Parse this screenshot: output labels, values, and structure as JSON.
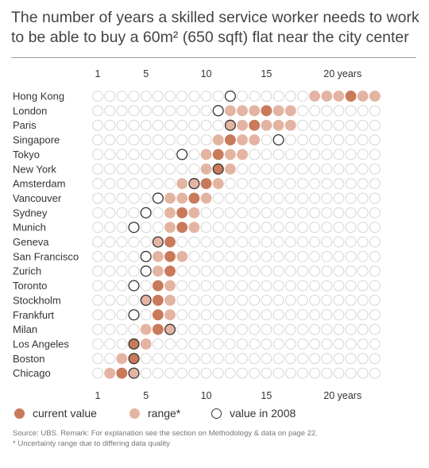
{
  "title": "The number of years a skilled service worker needs to work to be able to buy a 60m² (650 sqft) flat near the city center",
  "legend": {
    "current": "current value",
    "range": "range*",
    "y2008": "value in 2008"
  },
  "source_line1": "Source: UBS. Remark: For explanation see the section on Methodology & data on page 22.",
  "source_line2": "* Uncertainty range due to differing data quality",
  "colors": {
    "current": "#c97a5b",
    "range": "#e4b4a3",
    "empty": "#d9d9d9",
    "outline": "#333333"
  },
  "chart_data": {
    "type": "dot-range",
    "xlabel": "",
    "ylabel": "",
    "x_ticks": [
      {
        "value": 1,
        "label": "1"
      },
      {
        "value": 5,
        "label": "5"
      },
      {
        "value": 10,
        "label": "10"
      },
      {
        "value": 15,
        "label": "15"
      },
      {
        "value": 20,
        "label": "20 years"
      }
    ],
    "bottom_ticks": [
      {
        "value": 1,
        "label": "1"
      },
      {
        "value": 5,
        "label": "5"
      },
      {
        "value": 10,
        "label": "10"
      },
      {
        "value": 15,
        "label": "15"
      },
      {
        "value": 20,
        "label": "20 years"
      }
    ],
    "xlim": [
      1,
      24
    ],
    "cities": [
      {
        "name": "Hong Kong",
        "current": 22,
        "range": [
          19,
          24
        ],
        "y2008": 12
      },
      {
        "name": "London",
        "current": 15,
        "range": [
          12,
          17
        ],
        "y2008": 11
      },
      {
        "name": "Paris",
        "current": 14,
        "range": [
          12,
          17
        ],
        "y2008": 12
      },
      {
        "name": "Singapore",
        "current": 12,
        "range": [
          11,
          14
        ],
        "y2008": 16
      },
      {
        "name": "Tokyo",
        "current": 11,
        "range": [
          10,
          13
        ],
        "y2008": 8
      },
      {
        "name": "New York",
        "current": 11,
        "range": [
          10,
          12
        ],
        "y2008": 11
      },
      {
        "name": "Amsterdam",
        "current": 10,
        "range": [
          8,
          11
        ],
        "y2008": 9
      },
      {
        "name": "Vancouver",
        "current": 9,
        "range": [
          7,
          10
        ],
        "y2008": 6
      },
      {
        "name": "Sydney",
        "current": 8,
        "range": [
          7,
          9
        ],
        "y2008": 5
      },
      {
        "name": "Munich",
        "current": 8,
        "range": [
          7,
          9
        ],
        "y2008": 4
      },
      {
        "name": "Geneva",
        "current": 7,
        "range": [
          6,
          7
        ],
        "y2008": 6
      },
      {
        "name": "San Francisco",
        "current": 7,
        "range": [
          6,
          8
        ],
        "y2008": 5
      },
      {
        "name": "Zurich",
        "current": 7,
        "range": [
          6,
          7
        ],
        "y2008": 5
      },
      {
        "name": "Toronto",
        "current": 6,
        "range": [
          6,
          7
        ],
        "y2008": 4
      },
      {
        "name": "Stockholm",
        "current": 6,
        "range": [
          5,
          7
        ],
        "y2008": 5
      },
      {
        "name": "Frankfurt",
        "current": 6,
        "range": [
          6,
          7
        ],
        "y2008": 4
      },
      {
        "name": "Milan",
        "current": 6,
        "range": [
          5,
          7
        ],
        "y2008": 7
      },
      {
        "name": "Los Angeles",
        "current": 4,
        "range": [
          4,
          5
        ],
        "y2008": 4
      },
      {
        "name": "Boston",
        "current": 4,
        "range": [
          3,
          4
        ],
        "y2008": 4
      },
      {
        "name": "Chicago",
        "current": 3,
        "range": [
          2,
          4
        ],
        "y2008": 4
      }
    ]
  }
}
